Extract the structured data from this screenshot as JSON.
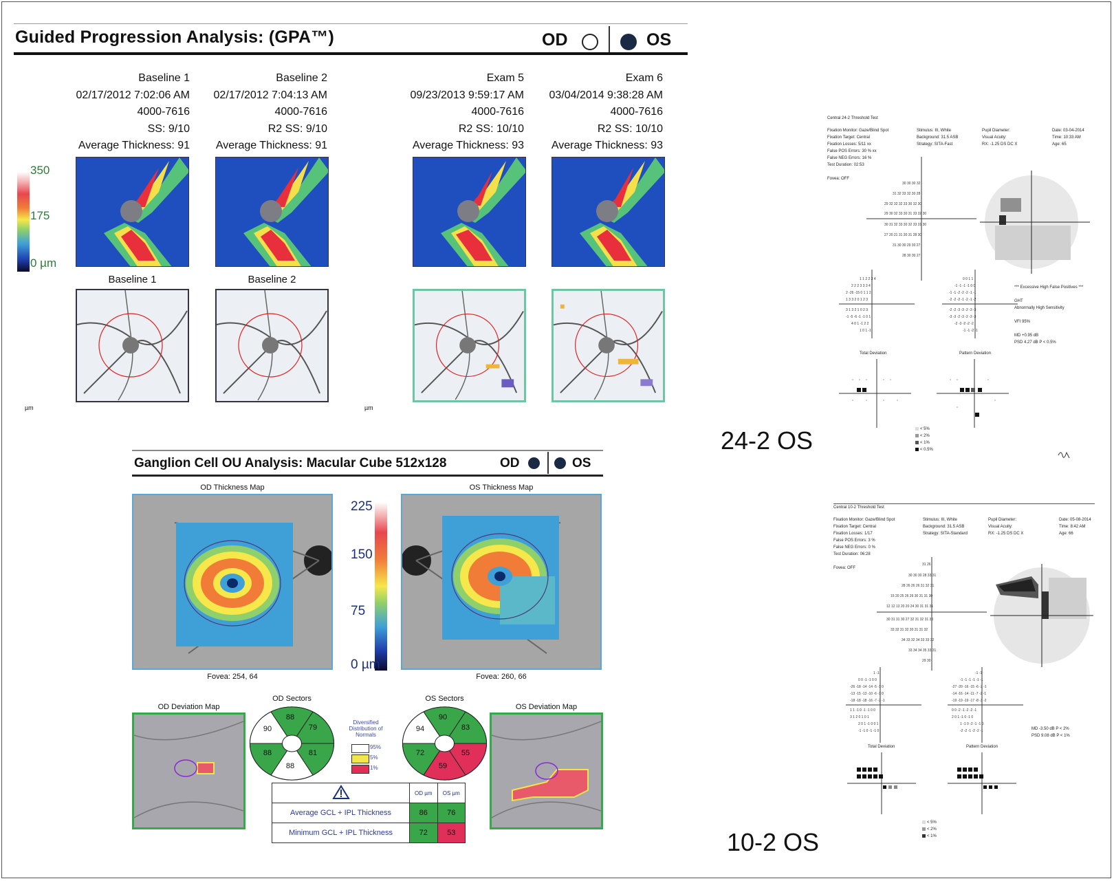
{
  "gpa": {
    "title": "Guided Progression Analysis: (GPA™)",
    "od_label": "OD",
    "os_label": "OS",
    "exams": [
      {
        "name": "Baseline 1",
        "datetime": "02/17/2012 7:02:06 AM",
        "id": "4000-7616",
        "ss": "SS: 9/10",
        "avg": "Average Thickness: 91",
        "caption": "Baseline 1"
      },
      {
        "name": "Baseline 2",
        "datetime": "02/17/2012 7:04:13 AM",
        "id": "4000-7616",
        "ss": "R2   SS: 9/10",
        "avg": "Average Thickness: 91",
        "caption": "Baseline 2"
      },
      {
        "name": "Exam 5",
        "datetime": "09/23/2013 9:59:17 AM",
        "id": "4000-7616",
        "ss": "R2   SS: 10/10",
        "avg": "Average Thickness: 93"
      },
      {
        "name": "Exam 6",
        "datetime": "03/04/2014 9:38:28 AM",
        "id": "4000-7616",
        "ss": "R2   SS: 10/10",
        "avg": "Average Thickness: 93"
      }
    ],
    "scale": {
      "top": "350",
      "mid": "175",
      "bottom": "0 µm"
    },
    "unit_small": "µm"
  },
  "gc": {
    "title": "Ganglion Cell OU Analysis: Macular Cube 512x128",
    "od_label": "OD",
    "os_label": "OS",
    "od_map_title": "OD Thickness Map",
    "os_map_title": "OS Thickness Map",
    "scale": {
      "top": "225",
      "s150": "150",
      "s75": "75",
      "bottom": "0 µm"
    },
    "od_fovea": "Fovea: 254, 64",
    "os_fovea": "Fovea: 260, 66",
    "od_dev_title": "OD Deviation Map",
    "os_dev_title": "OS Deviation Map",
    "od_sectors_title": "OD Sectors",
    "os_sectors_title": "OS Sectors",
    "od_sectors": {
      "top": "88",
      "upper_right": "79",
      "lower_right": "81",
      "bottom": "88",
      "lower_left": "88",
      "upper_left": "90"
    },
    "os_sectors": {
      "top": "90",
      "upper_right": "83",
      "lower_right": "55",
      "bottom": "59",
      "lower_left": "72",
      "upper_left": "94"
    },
    "legend": {
      "title": "Diversified Distribution of Normals",
      "p95": "95%",
      "p5": "5%",
      "p1": "1%"
    },
    "table": {
      "col_od": "OD µm",
      "col_os": "OS µm",
      "row1_label": "Average GCL + IPL Thickness",
      "row1_od": "86",
      "row1_os": "76",
      "row2_label": "Minimum GCL + IPL Thickness",
      "row2_od": "72",
      "row2_os": "53"
    },
    "colors": {
      "green": "#3aa64a",
      "red": "#e0305a",
      "yellow": "#f2e64a"
    }
  },
  "vf24": {
    "title": "Central 24-2 Threshold Test",
    "fixation_monitor": "Fixation Monitor: Gaze/Blind Spot",
    "fixation_target": "Fixation Target: Central",
    "fixation_losses": "Fixation Losses: 5/11 xx",
    "false_pos": "False POS Errors: 30 % xx",
    "false_neg": "False NEG Errors: 16 %",
    "duration": "Test Duration: 02:53",
    "fovea": "Fovea: OFF",
    "stimulus": "Stimulus: III, White",
    "background": "Background: 31.5 ASB",
    "strategy": "Strategy: SITA-Fast",
    "pupil": "Pupil Diameter:",
    "acuity": "Visual Acuity:",
    "rx": "RX: -1.25 DS    DC X",
    "date": "Date: 03-04-2014",
    "time": "Time: 10:33 AM",
    "age": "Age: 65",
    "warning": "*** Excessive High False Positives ***",
    "ght": "GHT",
    "ght_result": "Abnormally High Sensitivity",
    "vfi": "VFI   95%",
    "md": "MD    +0.95 dB",
    "psd": "PSD   4.27 dB  P < 0.5%",
    "total_dev": "Total Deviation",
    "pattern_dev": "Pattern Deviation",
    "legend": [
      "< 5%",
      "< 2%",
      "< 1%",
      "< 0.5%"
    ],
    "label": "24-2 OS"
  },
  "vf10": {
    "title": "Central 10-2 Threshold Test",
    "fixation_monitor": "Fixation Monitor: Gaze/Blind Spot",
    "fixation_target": "Fixation Target: Central",
    "fixation_losses": "Fixation Losses: 1/17",
    "false_pos": "False POS Errors: 3 %",
    "false_neg": "False NEG Errors: 0 %",
    "duration": "Test Duration: 06:28",
    "fovea": "Fovea: OFF",
    "stimulus": "Stimulus: III, White",
    "background": "Background: 31.5 ASB",
    "strategy": "Strategy: SITA-Standard",
    "pupil": "Pupil Diameter:",
    "acuity": "Visual Acuity:",
    "rx": "RX: -1.25 DS    DC X",
    "date": "Date: 05-08-2014",
    "time": "Time: 8:42 AM",
    "age": "Age: 66",
    "md": "MD    -3.50 dB  P < 2%",
    "psd": "PSD   9.08 dB  P < 1%",
    "total_dev": "Total Deviation",
    "pattern_dev": "Pattern Deviation",
    "legend": [
      "< 5%",
      "< 2%",
      "< 1%"
    ],
    "label": "10-2  OS"
  }
}
